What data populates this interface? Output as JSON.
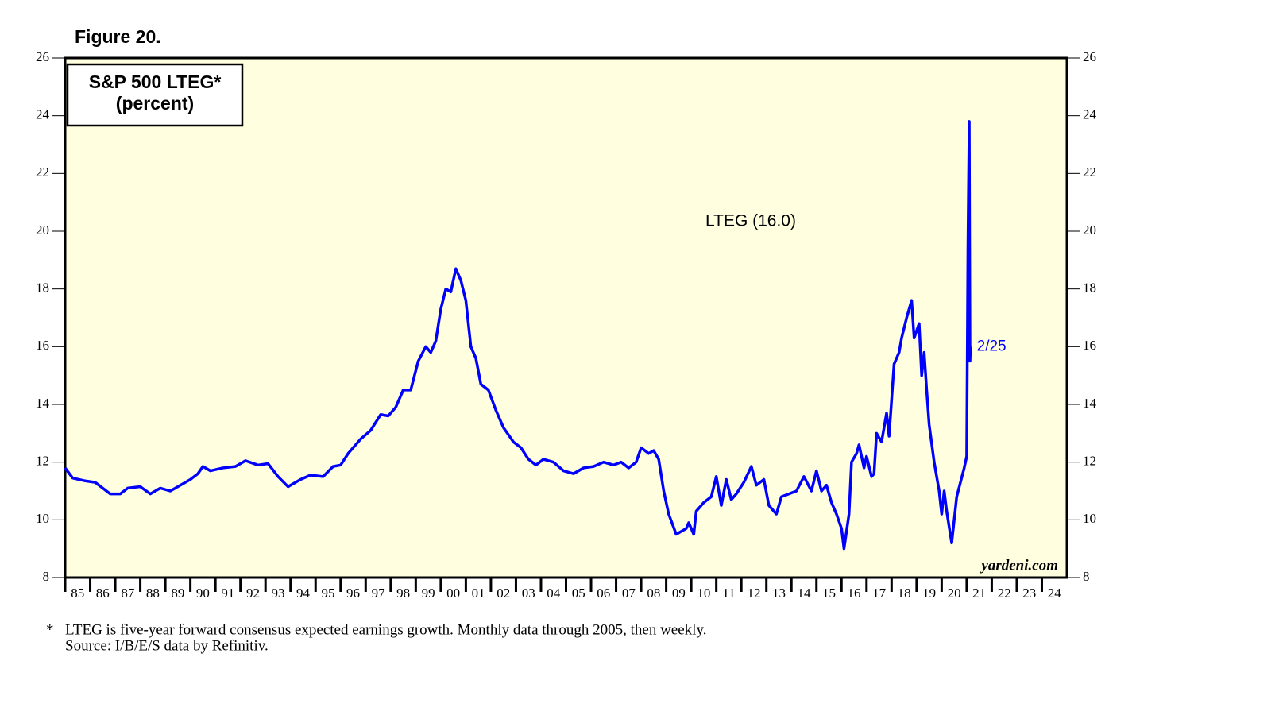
{
  "chart_data": {
    "type": "line",
    "figure_label": "Figure 20.",
    "title": "S&P 500 LTEG*",
    "subtitle": "(percent)",
    "annotations": {
      "series_label": "LTEG (16.0)",
      "end_label": "2/25",
      "source_site": "yardeni.com"
    },
    "footnote": {
      "marker": "*",
      "lines": [
        "LTEG is five-year forward consensus expected earnings growth. Monthly data through 2005, then weekly.",
        "Source: I/B/E/S data by Refinitiv."
      ]
    },
    "xlim": [
      1985,
      2025
    ],
    "ylim": [
      8,
      26
    ],
    "yticks": [
      8,
      10,
      12,
      14,
      16,
      18,
      20,
      22,
      24,
      26
    ],
    "xticks": [
      {
        "value": 1985,
        "label": "85"
      },
      {
        "value": 1986,
        "label": "86"
      },
      {
        "value": 1987,
        "label": "87"
      },
      {
        "value": 1988,
        "label": "88"
      },
      {
        "value": 1989,
        "label": "89"
      },
      {
        "value": 1990,
        "label": "90"
      },
      {
        "value": 1991,
        "label": "91"
      },
      {
        "value": 1992,
        "label": "92"
      },
      {
        "value": 1993,
        "label": "93"
      },
      {
        "value": 1994,
        "label": "94"
      },
      {
        "value": 1995,
        "label": "95"
      },
      {
        "value": 1996,
        "label": "96"
      },
      {
        "value": 1997,
        "label": "97"
      },
      {
        "value": 1998,
        "label": "98"
      },
      {
        "value": 1999,
        "label": "99"
      },
      {
        "value": 2000,
        "label": "00"
      },
      {
        "value": 2001,
        "label": "01"
      },
      {
        "value": 2002,
        "label": "02"
      },
      {
        "value": 2003,
        "label": "03"
      },
      {
        "value": 2004,
        "label": "04"
      },
      {
        "value": 2005,
        "label": "05"
      },
      {
        "value": 2006,
        "label": "06"
      },
      {
        "value": 2007,
        "label": "07"
      },
      {
        "value": 2008,
        "label": "08"
      },
      {
        "value": 2009,
        "label": "09"
      },
      {
        "value": 2010,
        "label": "10"
      },
      {
        "value": 2011,
        "label": "11"
      },
      {
        "value": 2012,
        "label": "12"
      },
      {
        "value": 2013,
        "label": "13"
      },
      {
        "value": 2014,
        "label": "14"
      },
      {
        "value": 2015,
        "label": "15"
      },
      {
        "value": 2016,
        "label": "16"
      },
      {
        "value": 2017,
        "label": "17"
      },
      {
        "value": 2018,
        "label": "18"
      },
      {
        "value": 2019,
        "label": "19"
      },
      {
        "value": 2020,
        "label": "20"
      },
      {
        "value": 2021,
        "label": "21"
      },
      {
        "value": 2022,
        "label": "22"
      },
      {
        "value": 2023,
        "label": "23"
      },
      {
        "value": 2024,
        "label": "24"
      }
    ],
    "background": "#ffffe0",
    "series": [
      {
        "name": "LTEG",
        "color": "#0000ff",
        "x": [
          1985.0,
          1985.3,
          1985.8,
          1986.2,
          1986.5,
          1986.8,
          1987.2,
          1987.5,
          1988.0,
          1988.4,
          1988.8,
          1989.2,
          1989.6,
          1990.0,
          1990.3,
          1990.5,
          1990.8,
          1991.3,
          1991.8,
          1992.2,
          1992.7,
          1993.1,
          1993.5,
          1993.9,
          1994.4,
          1994.8,
          1995.3,
          1995.7,
          1996.0,
          1996.3,
          1996.8,
          1997.2,
          1997.6,
          1997.9,
          1998.2,
          1998.5,
          1998.8,
          1999.1,
          1999.4,
          1999.6,
          1999.8,
          2000.0,
          2000.2,
          2000.4,
          2000.6,
          2000.8,
          2001.0,
          2001.2,
          2001.4,
          2001.6,
          2001.9,
          2002.2,
          2002.5,
          2002.9,
          2003.2,
          2003.5,
          2003.8,
          2004.1,
          2004.5,
          2004.9,
          2005.3,
          2005.7,
          2006.1,
          2006.5,
          2006.9,
          2007.2,
          2007.5,
          2007.8,
          2008.0,
          2008.3,
          2008.5,
          2008.7,
          2008.9,
          2009.1,
          2009.4,
          2009.6,
          2009.8,
          2009.9,
          2010.1,
          2010.2,
          2010.5,
          2010.8,
          2011.0,
          2011.2,
          2011.4,
          2011.6,
          2011.8,
          2012.1,
          2012.4,
          2012.6,
          2012.9,
          2013.1,
          2013.4,
          2013.6,
          2013.9,
          2014.2,
          2014.5,
          2014.8,
          2015.0,
          2015.2,
          2015.4,
          2015.6,
          2015.8,
          2016.0,
          2016.1,
          2016.3,
          2016.4,
          2016.6,
          2016.7,
          2016.9,
          2017.0,
          2017.2,
          2017.3,
          2017.4,
          2017.6,
          2017.8,
          2017.9,
          2018.1,
          2018.3,
          2018.4,
          2018.6,
          2018.8,
          2018.9,
          2019.1,
          2019.2,
          2019.3,
          2019.4,
          2019.5,
          2019.7,
          2019.9,
          2020.0,
          2020.1,
          2020.2,
          2020.4,
          2020.6,
          2020.9,
          2021.0,
          2021.05,
          2021.1,
          2021.13,
          2021.15
        ],
        "values": [
          11.8,
          11.45,
          11.35,
          11.3,
          11.1,
          10.9,
          10.9,
          11.1,
          11.15,
          10.9,
          11.1,
          11.0,
          11.2,
          11.4,
          11.6,
          11.85,
          11.7,
          11.8,
          11.85,
          12.05,
          11.9,
          11.95,
          11.5,
          11.15,
          11.4,
          11.55,
          11.5,
          11.85,
          11.9,
          12.3,
          12.8,
          13.1,
          13.65,
          13.6,
          13.9,
          14.5,
          14.5,
          15.5,
          16.0,
          15.8,
          16.2,
          17.3,
          18.0,
          17.9,
          18.7,
          18.3,
          17.6,
          16.0,
          15.6,
          14.7,
          14.5,
          13.8,
          13.2,
          12.7,
          12.5,
          12.1,
          11.9,
          12.1,
          12.0,
          11.7,
          11.6,
          11.8,
          11.85,
          12.0,
          11.9,
          12.0,
          11.8,
          12.0,
          12.5,
          12.3,
          12.4,
          12.1,
          11.0,
          10.2,
          9.5,
          9.6,
          9.7,
          9.9,
          9.5,
          10.3,
          10.6,
          10.8,
          11.5,
          10.5,
          11.4,
          10.7,
          10.9,
          11.3,
          11.85,
          11.2,
          11.4,
          10.5,
          10.2,
          10.8,
          10.9,
          11.0,
          11.5,
          11.0,
          11.7,
          11.0,
          11.2,
          10.6,
          10.2,
          9.7,
          9.0,
          10.2,
          12.0,
          12.3,
          12.6,
          11.8,
          12.2,
          11.5,
          11.6,
          13.0,
          12.7,
          13.7,
          12.9,
          15.4,
          15.8,
          16.3,
          17.0,
          17.6,
          16.3,
          16.8,
          15.0,
          15.8,
          14.5,
          13.3,
          12.0,
          11.0,
          10.2,
          11.0,
          10.3,
          9.2,
          10.8,
          11.8,
          12.2,
          19.5,
          23.8,
          15.5,
          16.0
        ]
      }
    ]
  }
}
